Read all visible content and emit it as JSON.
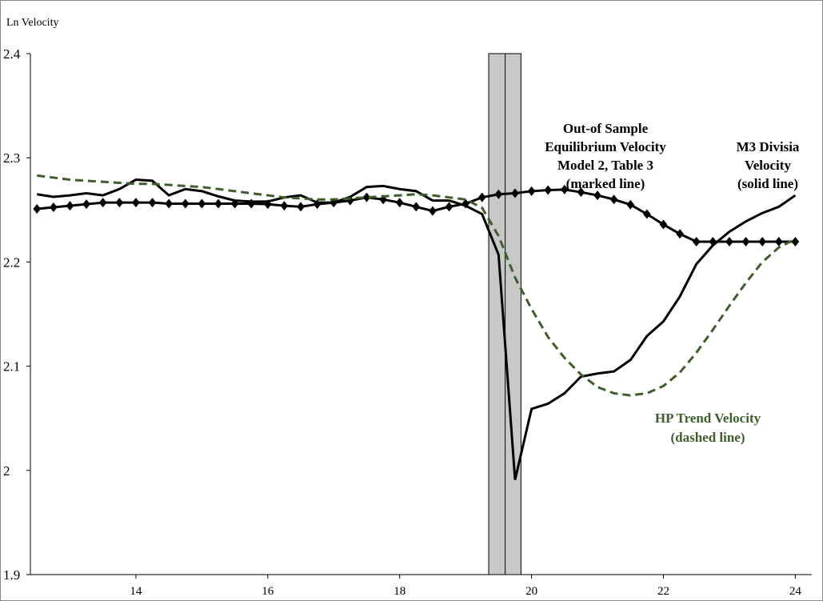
{
  "chart_data": {
    "type": "line",
    "y_label": "Ln Velocity",
    "x": [
      12.5,
      12.75,
      13,
      13.25,
      13.5,
      13.75,
      14,
      14.25,
      14.5,
      14.75,
      15,
      15.25,
      15.5,
      15.75,
      16,
      16.25,
      16.5,
      16.75,
      17,
      17.25,
      17.5,
      17.75,
      18,
      18.25,
      18.5,
      18.75,
      19,
      19.25,
      19.5,
      19.75,
      20,
      20.25,
      20.5,
      20.75,
      21,
      21.25,
      21.5,
      21.75,
      22,
      22.25,
      22.5,
      22.75,
      23,
      23.25,
      23.5,
      23.75,
      24
    ],
    "series": [
      {
        "color": "#000000",
        "style": "solid",
        "marker": "none",
        "values": [
          2.265,
          2.2625,
          2.264,
          2.266,
          2.264,
          2.27,
          2.279,
          2.278,
          2.264,
          2.27,
          2.268,
          2.263,
          2.259,
          2.258,
          2.258,
          2.262,
          2.264,
          2.257,
          2.257,
          2.2625,
          2.272,
          2.273,
          2.27,
          2.268,
          2.259,
          2.259,
          2.254,
          2.246,
          2.207,
          1.991,
          2.059,
          2.064,
          2.074,
          2.09,
          2.093,
          2.095,
          2.106,
          2.129,
          2.143,
          2.167,
          2.198,
          2.216,
          2.229,
          2.239,
          2.247,
          2.253,
          2.264
        ]
      },
      {
        "color": "#000000",
        "style": "solid",
        "marker": "diamond",
        "values": [
          2.251,
          2.2525,
          2.254,
          2.2555,
          2.257,
          2.257,
          2.257,
          2.257,
          2.256,
          2.256,
          2.256,
          2.256,
          2.256,
          2.256,
          2.2555,
          2.254,
          2.253,
          2.2555,
          2.257,
          2.259,
          2.262,
          2.26,
          2.257,
          2.253,
          2.249,
          2.253,
          2.256,
          2.262,
          2.265,
          2.266,
          2.268,
          2.269,
          2.2695,
          2.267,
          2.264,
          2.26,
          2.255,
          2.246,
          2.236,
          2.227,
          2.2195,
          2.2195,
          2.2195,
          2.2195,
          2.2195,
          2.2195,
          2.2195
        ]
      },
      {
        "color": "#3d5e2a",
        "style": "dashed",
        "marker": "none",
        "values": [
          2.283,
          2.281,
          2.279,
          2.278,
          2.277,
          2.276,
          2.275,
          2.275,
          2.274,
          2.273,
          2.272,
          2.27,
          2.268,
          2.266,
          2.264,
          2.262,
          2.261,
          2.26,
          2.26,
          2.261,
          2.262,
          2.263,
          2.264,
          2.265,
          2.264,
          2.262,
          2.26,
          2.252,
          2.225,
          2.185,
          2.155,
          2.128,
          2.108,
          2.092,
          2.08,
          2.074,
          2.072,
          2.074,
          2.081,
          2.094,
          2.113,
          2.135,
          2.158,
          2.18,
          2.2,
          2.214,
          2.222
        ]
      }
    ],
    "xlim": [
      12.4,
      24.25
    ],
    "xticks": [
      14,
      16,
      18,
      20,
      22,
      24
    ],
    "ylim": [
      1.9,
      2.4
    ],
    "yticks": [
      1.9,
      2,
      2.1,
      2.2,
      2.3,
      2.4
    ],
    "shaded_region": [
      19.35,
      19.84
    ],
    "vline": 19.6,
    "annotations": [
      [
        "Out-of Sample",
        "Equilibrium Velocity",
        "Model 2, Table 3",
        "(marked line)"
      ],
      [
        "M3 Divisia",
        "Velocity",
        "(solid line)"
      ],
      [
        "HP Trend Velocity",
        "(dashed line)"
      ]
    ]
  }
}
